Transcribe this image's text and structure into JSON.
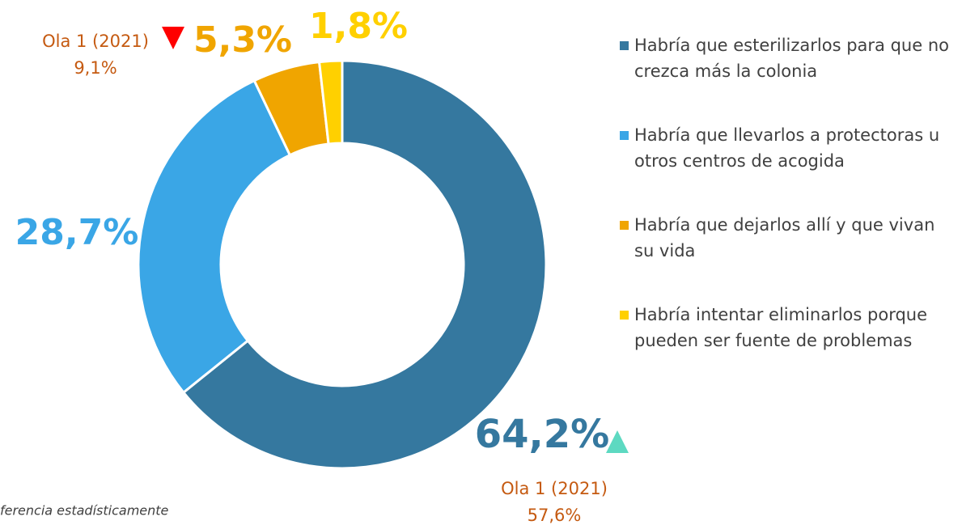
{
  "chart_data": {
    "type": "donut",
    "categories": [
      "Habría que esterilizarlos para que no crezca más la colonia",
      "Habría que llevarlos a protectoras u otros centros de acogida",
      "Habría que dejarlos allí y que vivan su vida",
      "Habría intentar eliminarlos porque pueden ser fuente de problemas"
    ],
    "values": [
      64.2,
      28.7,
      5.3,
      1.8
    ],
    "value_labels": [
      "64,2%",
      "28,7%",
      "5,3%",
      "1,8%"
    ],
    "colors": [
      "#35789f",
      "#3aa6e6",
      "#f0a500",
      "#ffd000"
    ],
    "annotations": [
      {
        "index": 0,
        "text": "Ola 1 (2021)",
        "value": 57.6,
        "value_label": "57,6%",
        "marker": "up",
        "marker_color": "#5dd9c1"
      },
      {
        "index": 2,
        "text": "Ola 1 (2021)",
        "value": 9.1,
        "value_label": "9,1%",
        "marker": "down",
        "marker_color": "#ff0000"
      }
    ],
    "footnote": "ferencia estadísticamente",
    "legend": "right"
  }
}
